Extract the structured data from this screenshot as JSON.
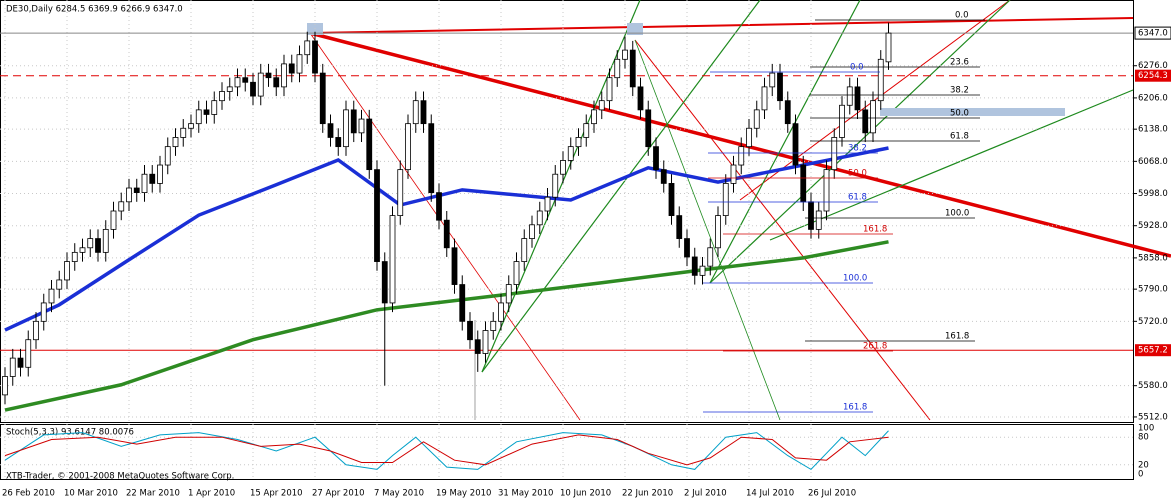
{
  "chart_data": {
    "type": "candlestick",
    "title": "DE30,Daily  6284.5 6369.9 6266.9 6347.0",
    "categories": [
      "26 Feb 2010",
      null,
      null,
      null,
      null,
      null,
      null,
      null,
      "10 Mar 2010",
      null,
      null,
      null,
      null,
      null,
      null,
      null,
      "22 Mar 2010",
      null,
      null,
      null,
      null,
      null,
      null,
      null,
      "1 Apr 2010",
      null,
      null,
      null,
      null,
      null,
      null,
      null,
      "15 Apr 2010",
      null,
      null,
      null,
      null,
      null,
      null,
      null,
      "27 Apr 2010",
      null,
      null,
      null,
      null,
      null,
      null,
      null,
      "7 May 2010",
      null,
      null,
      null,
      null,
      null,
      null,
      null,
      "19 May 2010",
      null,
      null,
      null,
      null,
      null,
      null,
      null,
      "31 May 2010",
      null,
      null,
      null,
      null,
      null,
      null,
      null,
      "10 Jun 2010",
      null,
      null,
      null,
      null,
      null,
      null,
      null,
      "22 Jun 2010",
      null,
      null,
      null,
      null,
      null,
      null,
      null,
      "2 Jul 2010",
      null,
      null,
      null,
      null,
      null,
      null,
      null,
      "14 Jul 2010",
      null,
      null,
      null,
      null,
      null,
      null,
      null,
      "26 Jul 2010",
      null,
      null,
      null,
      null,
      null,
      null,
      null,
      null,
      null,
      null
    ],
    "open": [
      5560,
      5600,
      5640,
      5620,
      5680,
      5720,
      5760,
      5790,
      5810,
      5850,
      5870,
      5880,
      5900,
      5870,
      5920,
      5960,
      5980,
      6010,
      6000,
      6040,
      6020,
      6060,
      6100,
      6120,
      6140,
      6150,
      6180,
      6170,
      6200,
      6220,
      6230,
      6250,
      6240,
      6210,
      6260,
      6250,
      6230,
      6280,
      6260,
      6300,
      6330,
      6260,
      6150,
      6120,
      6100,
      6180,
      6130,
      6160,
      6050,
      5850,
      5760,
      5950,
      6050,
      6150,
      6200,
      6150,
      6000,
      5940,
      5880,
      5800,
      5720,
      5680,
      5650,
      5700,
      5720,
      5760,
      5800,
      5850,
      5900,
      5930,
      5960,
      5990,
      6040,
      6070,
      6100,
      6120,
      6150,
      6180,
      6200,
      6250,
      6290,
      6310,
      6230,
      6180,
      6100,
      6050,
      6020,
      5950,
      5900,
      5860,
      5820,
      5840,
      5880,
      5950,
      6020,
      6060,
      6100,
      6140,
      6180,
      6230,
      6260,
      6200,
      6150,
      6060,
      5980,
      5920,
      5960,
      6050,
      6120,
      6190,
      6230,
      6180,
      6130,
      6200,
      6284.5
    ],
    "high": [
      5620,
      5660,
      5660,
      5700,
      5740,
      5780,
      5810,
      5830,
      5870,
      5890,
      5900,
      5920,
      5920,
      5940,
      5980,
      6000,
      6030,
      6030,
      6060,
      6060,
      6080,
      6120,
      6140,
      6160,
      6170,
      6200,
      6200,
      6220,
      6240,
      6250,
      6270,
      6270,
      6260,
      6280,
      6280,
      6270,
      6300,
      6300,
      6320,
      6350,
      6350,
      6280,
      6170,
      6140,
      6200,
      6200,
      6180,
      6180,
      6070,
      5870,
      5970,
      6070,
      6170,
      6220,
      6220,
      6170,
      6020,
      5960,
      5900,
      5820,
      5740,
      5700,
      5720,
      5740,
      5780,
      5820,
      5870,
      5920,
      5950,
      5980,
      6010,
      6060,
      6090,
      6120,
      6140,
      6170,
      6200,
      6220,
      6270,
      6310,
      6340,
      6330,
      6250,
      6200,
      6120,
      6070,
      6040,
      5970,
      5920,
      5880,
      5860,
      5900,
      5970,
      6040,
      6080,
      6120,
      6160,
      6200,
      6250,
      6280,
      6280,
      6220,
      6170,
      6080,
      6000,
      5980,
      6070,
      6140,
      6210,
      6250,
      6250,
      6200,
      6220,
      6310,
      6369.9
    ],
    "low": [
      5540,
      5580,
      5600,
      5600,
      5660,
      5700,
      5740,
      5770,
      5790,
      5830,
      5850,
      5860,
      5850,
      5850,
      5900,
      5940,
      5960,
      5980,
      5980,
      6000,
      6000,
      6040,
      6080,
      6100,
      6120,
      6130,
      6150,
      6150,
      6180,
      6200,
      6210,
      6220,
      6190,
      6190,
      6230,
      6210,
      6210,
      6240,
      6240,
      6280,
      6240,
      6130,
      6100,
      6080,
      6080,
      6110,
      6110,
      6030,
      5830,
      5580,
      5740,
      5930,
      6030,
      6130,
      6130,
      5980,
      5920,
      5860,
      5780,
      5700,
      5660,
      5610,
      5630,
      5680,
      5700,
      5740,
      5780,
      5830,
      5880,
      5910,
      5940,
      5970,
      6020,
      6050,
      6080,
      6100,
      6130,
      6160,
      6180,
      6230,
      6270,
      6210,
      6160,
      6080,
      6030,
      6000,
      5930,
      5880,
      5840,
      5800,
      5800,
      5820,
      5860,
      5930,
      6000,
      6040,
      6080,
      6120,
      6160,
      6210,
      6180,
      6130,
      6040,
      5960,
      5900,
      5900,
      5940,
      6030,
      6100,
      6170,
      6160,
      6110,
      6110,
      6180,
      6266.9
    ],
    "close": [
      5600,
      5640,
      5620,
      5680,
      5720,
      5760,
      5790,
      5810,
      5850,
      5870,
      5880,
      5900,
      5870,
      5920,
      5960,
      5980,
      6010,
      6000,
      6040,
      6020,
      6060,
      6100,
      6120,
      6140,
      6150,
      6180,
      6170,
      6200,
      6220,
      6230,
      6250,
      6240,
      6210,
      6260,
      6250,
      6230,
      6280,
      6260,
      6300,
      6330,
      6260,
      6150,
      6120,
      6100,
      6180,
      6130,
      6160,
      6050,
      5850,
      5760,
      5950,
      6050,
      6150,
      6200,
      6150,
      6000,
      5940,
      5880,
      5800,
      5720,
      5680,
      5650,
      5700,
      5720,
      5760,
      5800,
      5850,
      5900,
      5930,
      5960,
      5990,
      6040,
      6070,
      6100,
      6120,
      6150,
      6180,
      6200,
      6250,
      6290,
      6310,
      6230,
      6180,
      6100,
      6050,
      6020,
      5950,
      5900,
      5860,
      5820,
      5840,
      5880,
      5950,
      6020,
      6060,
      6100,
      6140,
      6180,
      6230,
      6260,
      6200,
      6150,
      6060,
      5980,
      5920,
      5960,
      6050,
      6120,
      6190,
      6230,
      6180,
      6130,
      6200,
      6290,
      6347
    ],
    "series": [
      {
        "color": "#1a2fd6",
        "x": [
          0,
          7,
          16,
          25,
          35,
          43,
          51,
          59,
          73,
          83,
          92,
          103,
          114
        ],
        "values": [
          5701,
          5756,
          5854,
          5951,
          6017,
          6071,
          5973,
          6006,
          5984,
          6054,
          6023,
          6060,
          6097
        ]
      },
      {
        "color": "#2e8b22",
        "x": [
          0,
          15,
          32,
          48,
          64,
          77,
          90,
          103,
          114
        ],
        "values": [
          5527,
          5582,
          5680,
          5745,
          5777,
          5804,
          5832,
          5858,
          5893
        ]
      }
    ],
    "ylim": [
      5501,
      6419
    ],
    "yticks": [
      {
        "value": 6276,
        "label": "6276.0"
      },
      {
        "value": 6206,
        "label": "6206.0"
      },
      {
        "value": 6138,
        "label": "6138.0"
      },
      {
        "value": 6068,
        "label": "6068.0"
      },
      {
        "value": 5998,
        "label": "5998.0"
      },
      {
        "value": 5928,
        "label": "5928.0"
      },
      {
        "value": 5858,
        "label": "5858.0"
      },
      {
        "value": 5790,
        "label": "5790.0"
      },
      {
        "value": 5720,
        "label": "5720.0"
      },
      {
        "value": 5580,
        "label": "5580.0"
      },
      {
        "value": 5512,
        "label": "5512.0"
      }
    ],
    "price_tags": [
      {
        "value": 6347,
        "label": "6347.0",
        "color": "#ffffff"
      },
      {
        "value": 6254.3,
        "label": "6254.3",
        "color": "#e00000"
      },
      {
        "value": 5657.2,
        "label": "5657.2",
        "color": "#e00000"
      }
    ],
    "annotations": [
      "0.0",
      "23.6",
      "38.2",
      "50.0",
      "61.8",
      "100.0",
      "161.8",
      "0.0",
      "38.2",
      "61.8",
      "100.0",
      "161.8",
      "50.0",
      "161.8",
      "261.8"
    ],
    "stoch": {
      "label": "Stoch(5,3,3) 93.6147 80.0076",
      "ylim": [
        0,
        100
      ],
      "yticks": [
        100,
        80,
        20,
        0
      ],
      "series": [
        {
          "color": "#00a0c8",
          "x": [
            0,
            5,
            10,
            15,
            20,
            25,
            30,
            35,
            40,
            44,
            48,
            50,
            53,
            57,
            61,
            66,
            72,
            77,
            81,
            86,
            89,
            93,
            97,
            101,
            104,
            108,
            111,
            114
          ],
          "values": [
            30,
            85,
            90,
            60,
            85,
            90,
            75,
            50,
            80,
            20,
            10,
            40,
            80,
            15,
            10,
            70,
            90,
            85,
            60,
            20,
            10,
            80,
            90,
            40,
            10,
            80,
            40,
            94
          ]
        },
        {
          "color": "#d00000",
          "x": [
            0,
            6,
            12,
            17,
            22,
            28,
            33,
            38,
            42,
            46,
            50,
            54,
            58,
            62,
            68,
            74,
            79,
            83,
            88,
            91,
            95,
            99,
            102,
            106,
            109,
            114
          ],
          "values": [
            40,
            75,
            80,
            65,
            80,
            80,
            60,
            65,
            50,
            25,
            25,
            70,
            30,
            20,
            65,
            85,
            75,
            45,
            20,
            35,
            80,
            75,
            35,
            30,
            70,
            80
          ]
        }
      ]
    },
    "copyright": "XTB-Trader, © 2001-2008 MetaQuotes Software Corp."
  }
}
